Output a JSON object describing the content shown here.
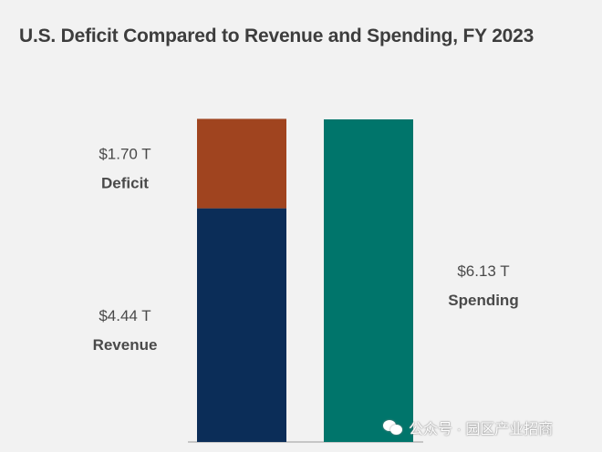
{
  "title": "U.S. Deficit Compared to Revenue and Spending, FY 2023",
  "watermark": "公众号 · 园区产业招商",
  "chart_data": {
    "type": "bar",
    "stacked": true,
    "unit": "T",
    "currency": "$",
    "categories": [
      "",
      ""
    ],
    "segments": [
      {
        "name": "Revenue",
        "value_label": "$4.44 T",
        "value": 4.44,
        "color": "#0b2d58",
        "bar": 0
      },
      {
        "name": "Deficit",
        "value_label": "$1.70 T",
        "value": 1.7,
        "color": "#a0441f",
        "bar": 0
      },
      {
        "name": "Spending",
        "value_label": "$6.13 T",
        "value": 6.13,
        "color": "#00756b",
        "bar": 1
      }
    ],
    "ylim": [
      0,
      6.13
    ],
    "grid": false,
    "legend": "none"
  }
}
